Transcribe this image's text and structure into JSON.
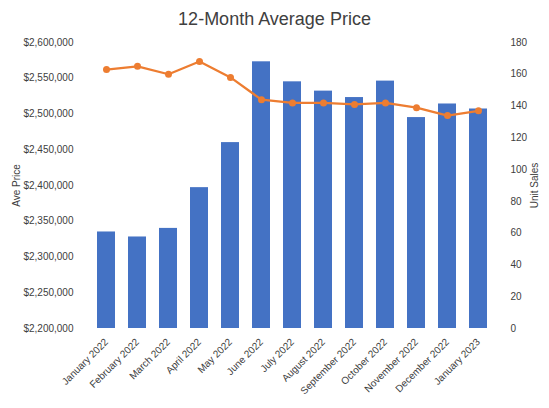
{
  "chart_data": {
    "type": "bar",
    "title": "12-Month Average Price",
    "y_label": "Ave Price",
    "y2_label": "Unit Sales",
    "categories": [
      "January 2022",
      "February 2022",
      "March 2022",
      "April 2022",
      "May 2022",
      "June 2022",
      "July 2022",
      "August 2022",
      "September 2022",
      "October 2022",
      "November 2022",
      "December 2022",
      "January 2023"
    ],
    "series": [
      {
        "name": "Ave Price",
        "type": "bar",
        "color": "#4472c4",
        "values": [
          2335000,
          2328000,
          2340000,
          2397000,
          2460000,
          2573000,
          2545000,
          2532000,
          2523000,
          2546000,
          2495000,
          2514000,
          2507000
        ]
      },
      {
        "name": "Unit Sales",
        "type": "line",
        "axis": "y2",
        "color": "#ed7d31",
        "marker": "circle",
        "values": [
          163,
          165,
          160,
          168,
          158,
          144,
          142,
          142,
          141,
          142,
          139,
          134,
          137
        ]
      }
    ],
    "ylim": [
      2200000,
      2600000
    ],
    "yticks": [
      {
        "value": 2200000,
        "label": "$2,200,000"
      },
      {
        "value": 2250000,
        "label": "$2,250,000"
      },
      {
        "value": 2300000,
        "label": "$2,300,000"
      },
      {
        "value": 2350000,
        "label": "$2,350,000"
      },
      {
        "value": 2400000,
        "label": "$2,400,000"
      },
      {
        "value": 2450000,
        "label": "$2,450,000"
      },
      {
        "value": 2500000,
        "label": "$2,500,000"
      },
      {
        "value": 2550000,
        "label": "$2,550,000"
      },
      {
        "value": 2600000,
        "label": "$2,600,000"
      }
    ],
    "y2lim": [
      0,
      180
    ],
    "y2ticks": [
      0,
      20,
      40,
      60,
      80,
      100,
      120,
      140,
      160,
      180
    ],
    "grid": false
  }
}
